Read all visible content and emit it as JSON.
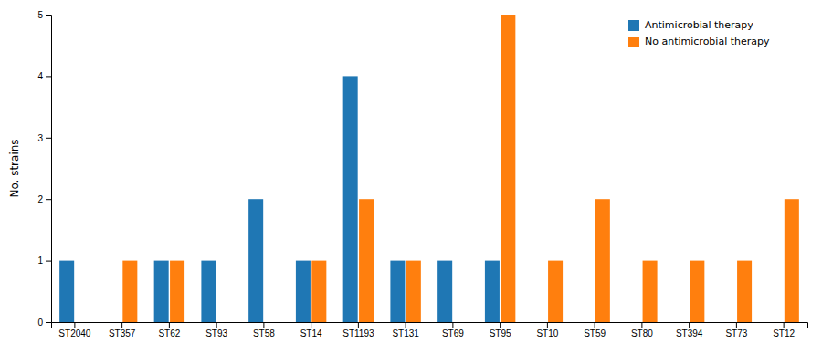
{
  "chart_data": {
    "type": "bar",
    "categories": [
      "ST2040",
      "ST357",
      "ST62",
      "ST93",
      "ST58",
      "ST14",
      "ST1193",
      "ST131",
      "ST69",
      "ST95",
      "ST10",
      "ST59",
      "ST80",
      "ST394",
      "ST73",
      "ST12"
    ],
    "series": [
      {
        "name": "Antimicrobial therapy",
        "values": [
          1,
          0,
          1,
          1,
          2,
          1,
          4,
          1,
          1,
          1,
          0,
          0,
          0,
          0,
          0,
          0
        ]
      },
      {
        "name": "No antimicrobial therapy",
        "values": [
          0,
          1,
          1,
          0,
          0,
          1,
          2,
          1,
          0,
          5,
          1,
          2,
          1,
          1,
          1,
          2
        ]
      }
    ],
    "ylabel": "No. strains",
    "ylim": [
      0,
      5
    ],
    "yticks": [
      0,
      1,
      2,
      3,
      4,
      5
    ],
    "grid": false,
    "legend": "upper right"
  }
}
